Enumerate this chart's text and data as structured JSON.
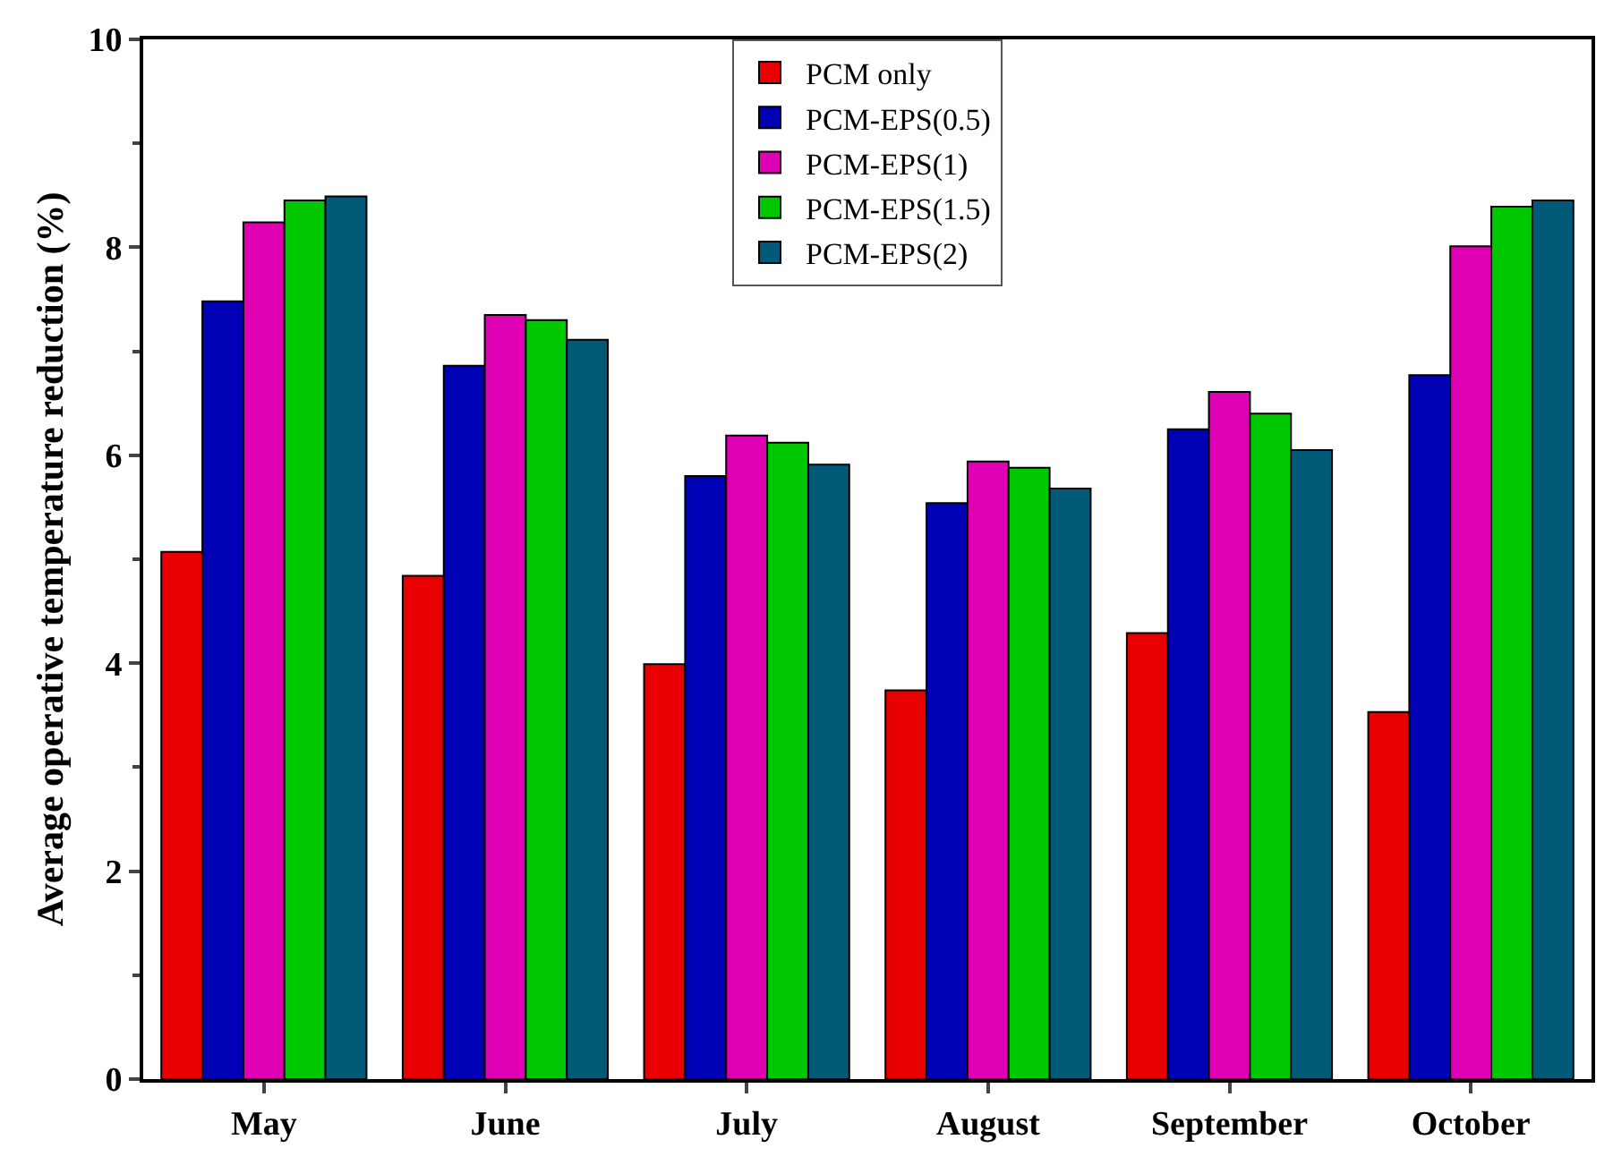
{
  "chart_data": {
    "type": "bar",
    "ylabel": "Average operative temperature reduction (%)",
    "categories": [
      "May",
      "June",
      "July",
      "August",
      "September",
      "October"
    ],
    "series": [
      {
        "name": "PCM only",
        "color": "#e80000",
        "values": [
          5.07,
          4.84,
          3.99,
          3.74,
          4.29,
          3.53
        ]
      },
      {
        "name": "PCM-EPS(0.5)",
        "color": "#0000b4",
        "values": [
          7.48,
          6.86,
          5.8,
          5.54,
          6.25,
          6.77
        ]
      },
      {
        "name": "PCM-EPS(1)",
        "color": "#e000b4",
        "values": [
          8.24,
          7.35,
          6.19,
          5.94,
          6.61,
          8.01
        ]
      },
      {
        "name": "PCM-EPS(1.5)",
        "color": "#00c800",
        "values": [
          8.45,
          7.3,
          6.12,
          5.88,
          6.4,
          8.39
        ]
      },
      {
        "name": "PCM-EPS(2)",
        "color": "#005a78",
        "values": [
          8.49,
          7.11,
          5.91,
          5.68,
          6.05,
          8.45
        ]
      }
    ],
    "ylim": [
      0,
      10
    ],
    "yticks": [
      0,
      2,
      4,
      6,
      8,
      10
    ],
    "grid": false,
    "legend": "top"
  }
}
